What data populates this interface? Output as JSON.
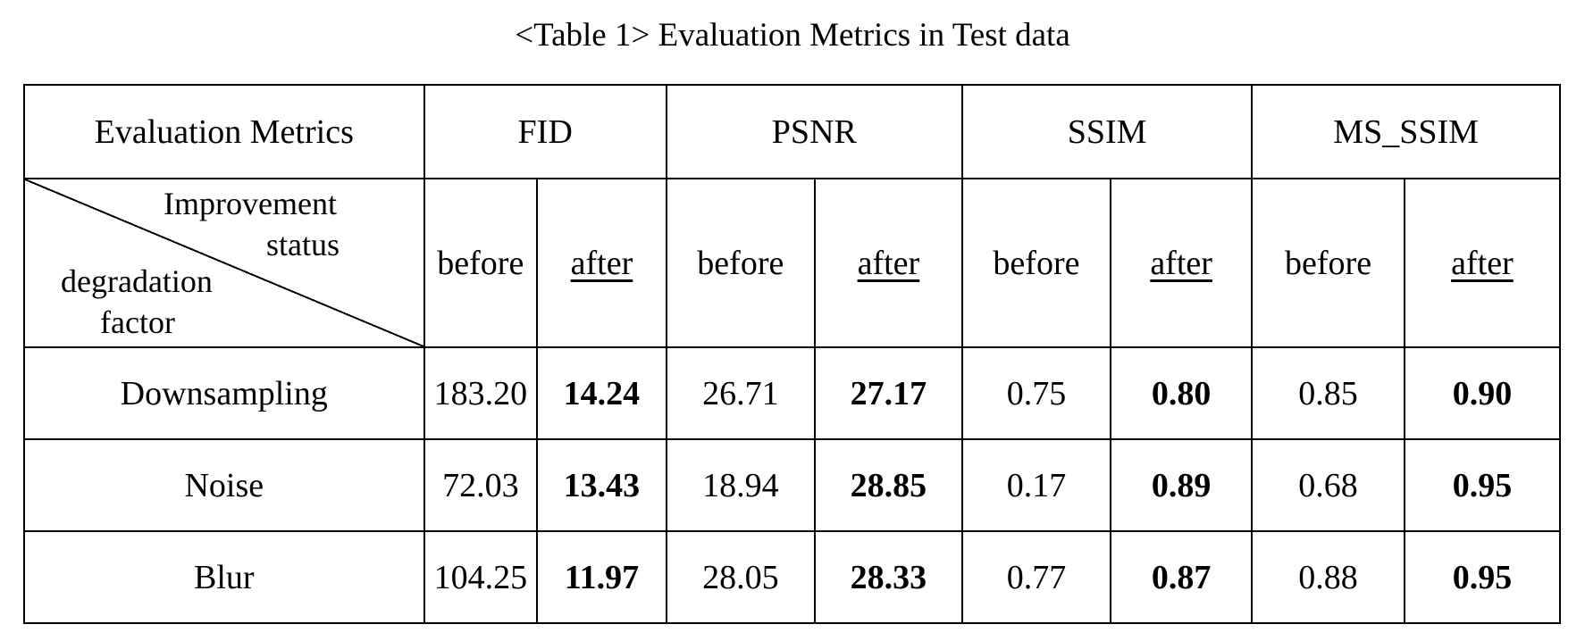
{
  "caption": "<Table 1> Evaluation Metrics in Test data",
  "table": {
    "header_label": "Evaluation Metrics",
    "metrics": [
      "FID",
      "PSNR",
      "SSIM",
      "MS_SSIM"
    ],
    "corner": {
      "column_axis_line1": "Improvement",
      "column_axis_line2": "status",
      "row_axis_line1": "degradation",
      "row_axis_line2": "factor"
    },
    "before_label": "before",
    "after_label": "after",
    "rows": [
      {
        "factor": "Downsampling",
        "fid_before": "183.20",
        "fid_after": "14.24",
        "psnr_before": "26.71",
        "psnr_after": "27.17",
        "ssim_before": "0.75",
        "ssim_after": "0.80",
        "msssim_before": "0.85",
        "msssim_after": "0.90"
      },
      {
        "factor": "Noise",
        "fid_before": "72.03",
        "fid_after": "13.43",
        "psnr_before": "18.94",
        "psnr_after": "28.85",
        "ssim_before": "0.17",
        "ssim_after": "0.89",
        "msssim_before": "0.68",
        "msssim_after": "0.95"
      },
      {
        "factor": "Blur",
        "fid_before": "104.25",
        "fid_after": "11.97",
        "psnr_before": "28.05",
        "psnr_after": "28.33",
        "ssim_before": "0.77",
        "ssim_after": "0.87",
        "msssim_before": "0.88",
        "msssim_after": "0.95"
      }
    ]
  }
}
